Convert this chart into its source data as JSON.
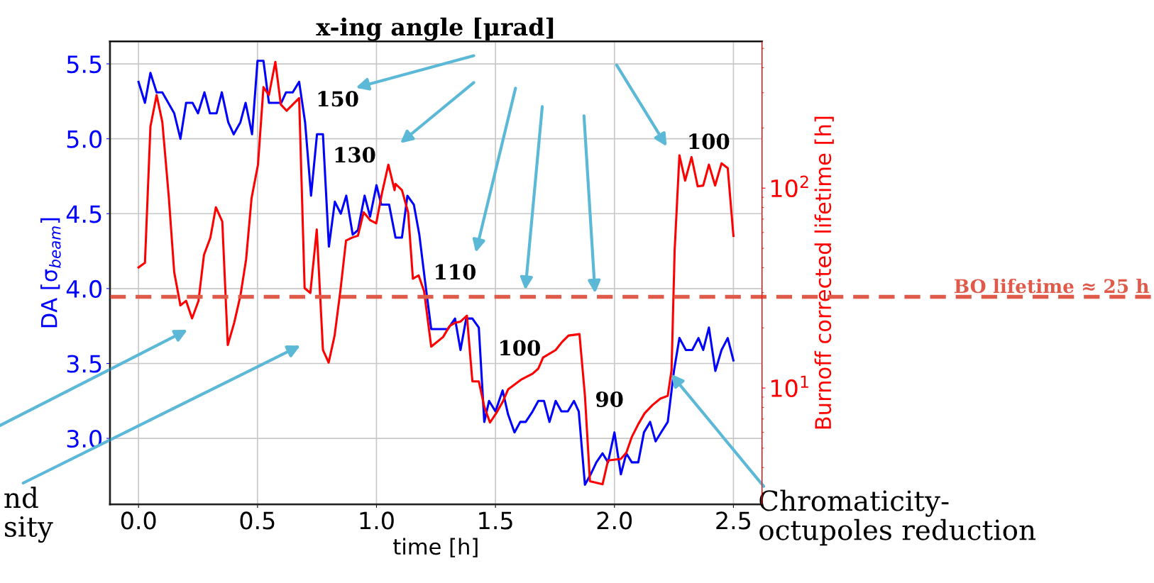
{
  "chart_data": {
    "type": "line",
    "title": "x-ing angle [μrad]",
    "xlabel": "time [h]",
    "ylabel": "DA [σ$_{beam}$]",
    "y2label": "Burnoff corrected lifetime [h]",
    "xlim": [
      -0.12,
      2.62
    ],
    "xticks": [
      {
        "value": 0,
        "label": "0.0"
      },
      0.5,
      {
        "value": 1,
        "label": "1.0"
      },
      1.5,
      {
        "value": 2,
        "label": "2.0"
      },
      2.5
    ],
    "ylim": [
      2.56,
      5.65
    ],
    "yticks": [
      {
        "value": 3,
        "label": "3.0"
      },
      3.5,
      {
        "value": 4,
        "label": "4.0"
      },
      4.5,
      {
        "value": 5,
        "label": "5.0"
      },
      5.5
    ],
    "y2lim": [
      2.62,
      542
    ],
    "y2ticks": [
      {
        "value": 10,
        "label": "10$^{1}$"
      },
      {
        "value": 100,
        "label": "10$^{2}$"
      }
    ],
    "log": "y2",
    "grid": true,
    "line_style": "solid",
    "marker": "none",
    "series": [
      {
        "color": "#0000ff",
        "x": [
          0,
          0.027,
          0.05,
          0.076,
          0.1,
          0.15,
          0.176,
          0.2,
          0.227,
          0.25,
          0.277,
          0.3,
          0.328,
          0.35,
          0.377,
          0.4,
          0.428,
          0.45,
          0.477,
          0.5,
          0.525,
          0.548,
          0.6,
          0.62,
          0.648,
          0.675,
          0.7,
          0.725,
          0.75,
          0.775,
          0.8,
          0.825,
          0.85,
          0.873,
          0.9,
          0.922,
          0.95,
          0.973,
          1.0,
          1.02,
          1.053,
          1.08,
          1.107,
          1.13,
          1.157,
          1.18,
          1.204,
          1.23,
          1.3,
          1.33,
          1.353,
          1.377,
          1.403,
          1.43,
          1.453,
          1.473,
          1.5,
          1.53,
          1.553,
          1.58,
          1.604,
          1.627,
          1.656,
          1.68,
          1.704,
          1.727,
          1.753,
          1.777,
          1.804,
          1.83,
          1.85,
          1.876,
          1.9,
          1.924,
          1.95,
          1.973,
          2.0,
          2.027,
          2.05,
          2.073,
          2.1,
          2.124,
          2.15,
          2.173,
          2.2,
          2.224,
          2.25,
          2.273,
          2.3,
          2.327,
          2.353,
          2.373,
          2.397,
          2.424,
          2.45,
          2.476,
          2.5
        ],
        "values": [
          5.38,
          5.24,
          5.44,
          5.31,
          5.31,
          5.17,
          5.0,
          5.24,
          5.24,
          5.17,
          5.31,
          5.17,
          5.17,
          5.31,
          5.11,
          5.03,
          5.11,
          5.24,
          5.03,
          5.52,
          5.52,
          5.24,
          5.24,
          5.31,
          5.31,
          5.38,
          5.11,
          4.62,
          5.03,
          5.03,
          4.28,
          4.58,
          4.5,
          4.62,
          4.36,
          4.39,
          4.62,
          4.48,
          4.69,
          4.56,
          4.56,
          4.34,
          4.34,
          4.62,
          4.56,
          4.36,
          4.05,
          3.73,
          3.73,
          3.8,
          3.59,
          3.8,
          3.8,
          3.74,
          3.11,
          3.25,
          3.18,
          3.32,
          3.16,
          3.04,
          3.11,
          3.11,
          3.18,
          3.25,
          3.25,
          3.11,
          3.25,
          3.18,
          3.18,
          3.25,
          3.18,
          2.69,
          2.76,
          2.84,
          2.9,
          2.84,
          3.04,
          2.76,
          2.9,
          2.84,
          2.84,
          3.04,
          3.11,
          2.98,
          3.05,
          3.11,
          3.45,
          3.67,
          3.59,
          3.59,
          3.67,
          3.59,
          3.74,
          3.45,
          3.59,
          3.67,
          3.52
        ]
      },
      {
        "color": "#ff0000",
        "axis": "y2",
        "x": [
          0,
          0.027,
          0.05,
          0.076,
          0.1,
          0.127,
          0.15,
          0.176,
          0.2,
          0.225,
          0.252,
          0.275,
          0.302,
          0.325,
          0.352,
          0.375,
          0.402,
          0.428,
          0.452,
          0.475,
          0.502,
          0.525,
          0.548,
          0.575,
          0.598,
          0.622,
          0.675,
          0.698,
          0.722,
          0.749,
          0.775,
          0.799,
          0.824,
          0.848,
          0.872,
          0.899,
          0.922,
          0.946,
          0.973,
          0.999,
          1.023,
          1.05,
          1.076,
          1.08,
          1.107,
          1.133,
          1.153,
          1.177,
          1.2,
          1.23,
          1.28,
          1.307,
          1.33,
          1.353,
          1.38,
          1.403,
          1.43,
          1.453,
          1.477,
          1.503,
          1.53,
          1.553,
          1.58,
          1.607,
          1.656,
          1.68,
          1.7,
          1.753,
          1.78,
          1.807,
          1.853,
          1.876,
          1.897,
          1.95,
          1.973,
          2.027,
          2.05,
          2.073,
          2.1,
          2.127,
          2.16,
          2.193,
          2.224,
          2.24,
          2.253,
          2.273,
          2.297,
          2.324,
          2.35,
          2.373,
          2.397,
          2.423,
          2.45,
          2.476,
          2.5
        ],
        "values": [
          40.1,
          42.3,
          203,
          292,
          214,
          91,
          37.9,
          25.9,
          27.3,
          22.3,
          27.3,
          46.3,
          56.6,
          80.2,
          68.1,
          16.4,
          21.2,
          28.9,
          43.9,
          89.1,
          131,
          320,
          292,
          428,
          262,
          244,
          282,
          31.6,
          29.9,
          62.1,
          15.5,
          13.4,
          18.3,
          30.5,
          54.7,
          56.6,
          57.8,
          75.7,
          69.2,
          66.7,
          94.4,
          131,
          97.7,
          105,
          97.7,
          75.7,
          35.2,
          36.6,
          30.5,
          16.1,
          18.0,
          20.4,
          21.2,
          21.5,
          23.0,
          10.8,
          10.8,
          8.06,
          6.72,
          7.48,
          8.51,
          9.84,
          10.4,
          11.0,
          11.8,
          12.5,
          14.2,
          15.5,
          17.0,
          18.3,
          18.6,
          9.14,
          3.42,
          3.3,
          4.34,
          4.42,
          4.75,
          5.69,
          6.59,
          7.48,
          8.22,
          8.85,
          9.14,
          12.3,
          49.0,
          146,
          109,
          143,
          102,
          103,
          131,
          103,
          133,
          126,
          57.7
        ]
      }
    ],
    "ref_lines": [
      {
        "axis": "y2",
        "value": 28.6,
        "label": "BO lifetime ≈ 25 h",
        "color": "#e05a4a",
        "line_style": "dashed"
      }
    ],
    "annotations": [
      "150",
      "130",
      "110",
      "100",
      "90",
      "100",
      {
        "text": "Chromaticity-\noctupoles reduction",
        "x": 2.232,
        "y": 3.44
      },
      "nd\nsity"
    ]
  }
}
